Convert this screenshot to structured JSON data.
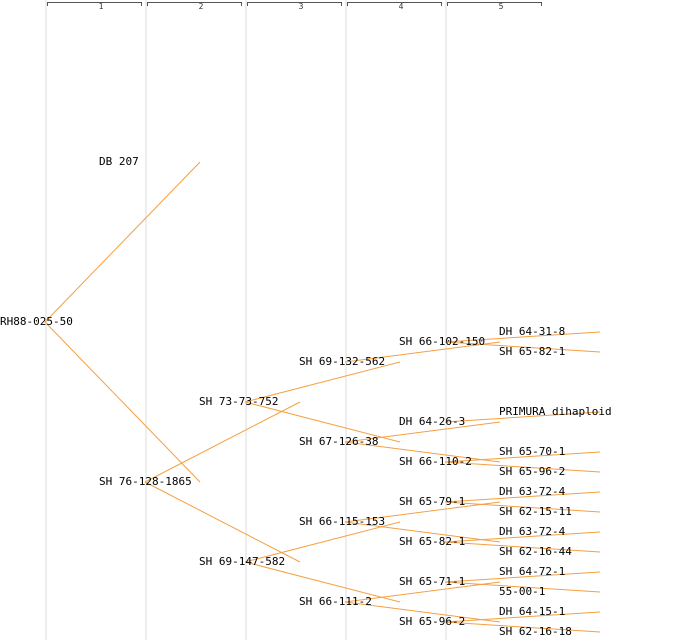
{
  "colors": {
    "edge": "#f5a042",
    "grid": "#eeeeee"
  },
  "generations": [
    "1",
    "2",
    "3",
    "4",
    "5"
  ],
  "tree": {
    "label": "RH88-025-50",
    "children": [
      {
        "label": "DB 207"
      },
      {
        "label": "SH 76-128-1865",
        "children": [
          {
            "label": "SH 73-73-752",
            "children": [
              {
                "label": "SH 69-132-562",
                "children": [
                  {
                    "label": "SH 66-102-150",
                    "children": [
                      {
                        "label": "DH 64-31-8"
                      },
                      {
                        "label": "SH 65-82-1"
                      }
                    ]
                  }
                ]
              },
              {
                "label": "SH 67-126-38",
                "children": [
                  {
                    "label": "DH 64-26-3",
                    "children": [
                      {
                        "label": "PRIMURA dihaploid"
                      }
                    ]
                  },
                  {
                    "label": "SH 66-110-2",
                    "children": [
                      {
                        "label": "SH 65-70-1"
                      },
                      {
                        "label": "SH 65-96-2"
                      }
                    ]
                  }
                ]
              }
            ]
          },
          {
            "label": "SH 69-147-582",
            "children": [
              {
                "label": "SH 66-115-153",
                "children": [
                  {
                    "label": "SH 65-79-1",
                    "children": [
                      {
                        "label": "DH 63-72-4"
                      },
                      {
                        "label": "SH 62-15-11"
                      }
                    ]
                  },
                  {
                    "label": "SH 65-82-1",
                    "children": [
                      {
                        "label": "DH 63-72-4"
                      },
                      {
                        "label": "SH 62-16-44"
                      }
                    ]
                  }
                ]
              },
              {
                "label": "SH 66-111-2",
                "children": [
                  {
                    "label": "SH 65-71-1",
                    "children": [
                      {
                        "label": "SH 64-72-1"
                      },
                      {
                        "label": "55-00-1"
                      }
                    ]
                  },
                  {
                    "label": "SH 65-96-2",
                    "children": [
                      {
                        "label": "DH 64-15-1"
                      },
                      {
                        "label": "SH 62-16-18"
                      }
                    ]
                  }
                ]
              }
            ]
          }
        ]
      }
    ]
  }
}
